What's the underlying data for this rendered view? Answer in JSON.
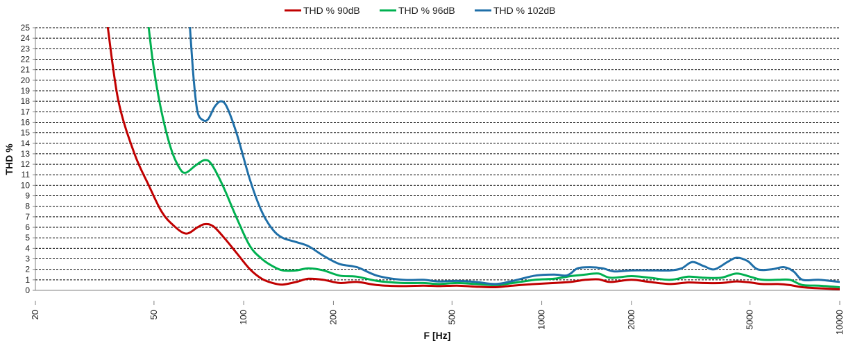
{
  "chart_data": {
    "type": "line",
    "title": "",
    "xlabel": "F [Hz]",
    "ylabel": "THD %",
    "x_scale": "log",
    "xlim": [
      20,
      10000
    ],
    "ylim": [
      0,
      25
    ],
    "x_ticks": [
      20,
      50,
      100,
      200,
      500,
      1000,
      2000,
      5000,
      10000
    ],
    "x_tick_labels": [
      "20",
      "50",
      "100",
      "200",
      "500",
      "1000",
      "2000",
      "5000",
      "10000"
    ],
    "y_ticks": [
      0,
      1,
      2,
      3,
      4,
      5,
      6,
      7,
      8,
      9,
      10,
      11,
      12,
      13,
      14,
      15,
      16,
      17,
      18,
      19,
      20,
      21,
      22,
      23,
      24,
      25
    ],
    "y_tick_labels": [
      "0",
      "1",
      "2",
      "3",
      "4",
      "5",
      "6",
      "7",
      "8",
      "9",
      "10",
      "11",
      "12",
      "13",
      "14",
      "15",
      "16",
      "17",
      "18",
      "19",
      "20",
      "21",
      "22",
      "23",
      "24",
      "25"
    ],
    "grid": "horizontal dashed",
    "legend_position": "top",
    "series": [
      {
        "name": "THD % 90dB",
        "color": "#c00000",
        "points": [
          [
            35,
            25
          ],
          [
            38,
            18
          ],
          [
            43,
            13
          ],
          [
            48,
            10
          ],
          [
            53,
            7.5
          ],
          [
            58,
            6.2
          ],
          [
            64,
            5.4
          ],
          [
            70,
            6
          ],
          [
            74,
            6.3
          ],
          [
            79,
            6.1
          ],
          [
            86,
            5
          ],
          [
            95,
            3.5
          ],
          [
            105,
            2
          ],
          [
            115,
            1.1
          ],
          [
            125,
            0.7
          ],
          [
            135,
            0.55
          ],
          [
            150,
            0.8
          ],
          [
            165,
            1.1
          ],
          [
            185,
            1
          ],
          [
            210,
            0.7
          ],
          [
            240,
            0.8
          ],
          [
            280,
            0.5
          ],
          [
            340,
            0.4
          ],
          [
            400,
            0.45
          ],
          [
            450,
            0.4
          ],
          [
            520,
            0.45
          ],
          [
            600,
            0.35
          ],
          [
            700,
            0.3
          ],
          [
            800,
            0.45
          ],
          [
            950,
            0.6
          ],
          [
            1100,
            0.7
          ],
          [
            1250,
            0.8
          ],
          [
            1400,
            1
          ],
          [
            1550,
            1.05
          ],
          [
            1700,
            0.8
          ],
          [
            2000,
            1
          ],
          [
            2300,
            0.8
          ],
          [
            2700,
            0.6
          ],
          [
            3100,
            0.75
          ],
          [
            3500,
            0.7
          ],
          [
            4000,
            0.7
          ],
          [
            4500,
            0.85
          ],
          [
            5000,
            0.75
          ],
          [
            5500,
            0.6
          ],
          [
            6200,
            0.6
          ],
          [
            6800,
            0.5
          ],
          [
            7500,
            0.3
          ],
          [
            8500,
            0.2
          ],
          [
            10000,
            0.1
          ]
        ]
      },
      {
        "name": "THD % 96dB",
        "color": "#00b050",
        "points": [
          [
            48,
            25
          ],
          [
            50,
            21
          ],
          [
            53,
            17
          ],
          [
            57,
            13.5
          ],
          [
            61,
            11.6
          ],
          [
            64,
            11.2
          ],
          [
            69,
            11.9
          ],
          [
            74,
            12.4
          ],
          [
            78,
            12
          ],
          [
            85,
            10
          ],
          [
            95,
            6.8
          ],
          [
            105,
            4.2
          ],
          [
            115,
            3
          ],
          [
            125,
            2.3
          ],
          [
            135,
            1.9
          ],
          [
            150,
            1.9
          ],
          [
            165,
            2.1
          ],
          [
            185,
            1.9
          ],
          [
            210,
            1.4
          ],
          [
            240,
            1.3
          ],
          [
            280,
            0.9
          ],
          [
            340,
            0.7
          ],
          [
            400,
            0.7
          ],
          [
            450,
            0.6
          ],
          [
            520,
            0.7
          ],
          [
            600,
            0.6
          ],
          [
            700,
            0.5
          ],
          [
            800,
            0.7
          ],
          [
            950,
            1
          ],
          [
            1100,
            1.1
          ],
          [
            1250,
            1.35
          ],
          [
            1400,
            1.5
          ],
          [
            1550,
            1.6
          ],
          [
            1700,
            1.2
          ],
          [
            2000,
            1.35
          ],
          [
            2300,
            1.2
          ],
          [
            2700,
            1
          ],
          [
            3100,
            1.3
          ],
          [
            3500,
            1.2
          ],
          [
            4000,
            1.2
          ],
          [
            4500,
            1.6
          ],
          [
            5000,
            1.3
          ],
          [
            5500,
            1
          ],
          [
            6200,
            1
          ],
          [
            6800,
            1
          ],
          [
            7500,
            0.5
          ],
          [
            8500,
            0.45
          ],
          [
            10000,
            0.3
          ]
        ]
      },
      {
        "name": "THD % 102dB",
        "color": "#1f6fa8",
        "points": [
          [
            66,
            25
          ],
          [
            68,
            20
          ],
          [
            70,
            17
          ],
          [
            73,
            16.2
          ],
          [
            76,
            16.3
          ],
          [
            80,
            17.5
          ],
          [
            84,
            18
          ],
          [
            88,
            17.4
          ],
          [
            95,
            14.8
          ],
          [
            105,
            10.5
          ],
          [
            115,
            7.5
          ],
          [
            125,
            5.8
          ],
          [
            135,
            5
          ],
          [
            150,
            4.6
          ],
          [
            165,
            4.2
          ],
          [
            185,
            3.3
          ],
          [
            210,
            2.5
          ],
          [
            240,
            2.2
          ],
          [
            280,
            1.4
          ],
          [
            340,
            1
          ],
          [
            400,
            1
          ],
          [
            450,
            0.85
          ],
          [
            520,
            0.9
          ],
          [
            600,
            0.8
          ],
          [
            700,
            0.6
          ],
          [
            800,
            0.9
          ],
          [
            950,
            1.4
          ],
          [
            1100,
            1.5
          ],
          [
            1200,
            1.4
          ],
          [
            1250,
            1.6
          ],
          [
            1320,
            2.1
          ],
          [
            1450,
            2.2
          ],
          [
            1600,
            2.1
          ],
          [
            1750,
            1.8
          ],
          [
            2000,
            1.9
          ],
          [
            2300,
            1.9
          ],
          [
            2700,
            1.9
          ],
          [
            2950,
            2.1
          ],
          [
            3200,
            2.7
          ],
          [
            3500,
            2.3
          ],
          [
            3800,
            2
          ],
          [
            4200,
            2.7
          ],
          [
            4500,
            3.1
          ],
          [
            4900,
            2.8
          ],
          [
            5300,
            2
          ],
          [
            5900,
            2
          ],
          [
            6500,
            2.2
          ],
          [
            7000,
            1.8
          ],
          [
            7500,
            1
          ],
          [
            8500,
            1
          ],
          [
            10000,
            0.8
          ]
        ]
      }
    ]
  }
}
